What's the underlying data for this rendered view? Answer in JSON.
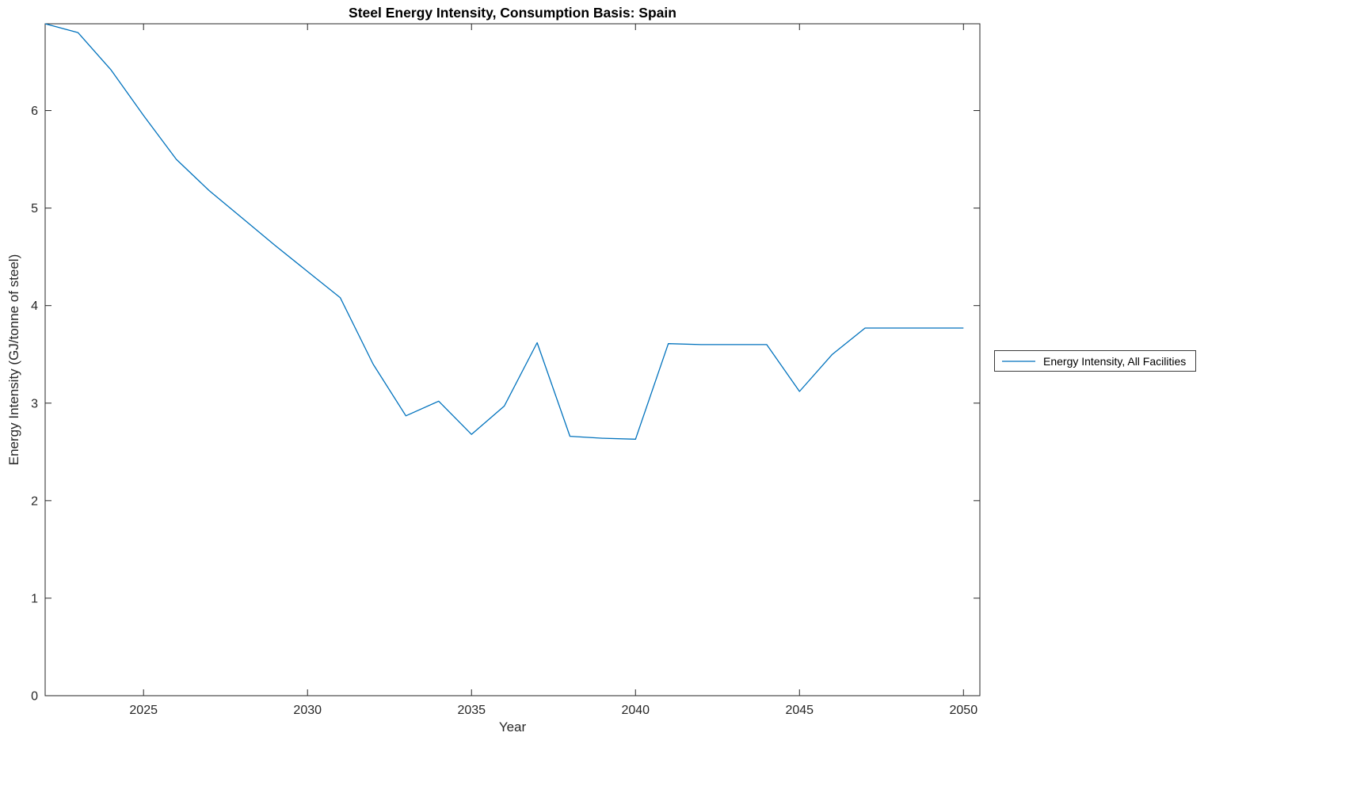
{
  "chart_data": {
    "type": "line",
    "title": "Steel Energy Intensity, Consumption Basis: Spain",
    "xlabel": "Year",
    "ylabel": "Energy Intensity (GJ/tonne of steel)",
    "x": [
      2022,
      2023,
      2024,
      2025,
      2026,
      2027,
      2028,
      2029,
      2030,
      2031,
      2032,
      2033,
      2034,
      2035,
      2036,
      2037,
      2038,
      2039,
      2040,
      2041,
      2042,
      2043,
      2044,
      2045,
      2046,
      2047,
      2048,
      2049,
      2050
    ],
    "series": [
      {
        "name": "Energy Intensity, All Facilities",
        "color": "#0072BD",
        "values": [
          6.89,
          6.8,
          6.42,
          5.95,
          5.5,
          5.18,
          4.9,
          4.62,
          4.35,
          4.08,
          3.4,
          2.87,
          3.02,
          2.68,
          2.97,
          3.62,
          2.66,
          2.64,
          2.63,
          3.61,
          3.6,
          3.6,
          3.6,
          3.12,
          3.5,
          3.77,
          3.77,
          3.77,
          3.77
        ]
      }
    ],
    "xlim": [
      2022,
      2050.5
    ],
    "ylim": [
      0,
      6.89
    ],
    "xticks": [
      2025,
      2030,
      2035,
      2040,
      2045,
      2050
    ],
    "yticks": [
      0,
      1,
      2,
      3,
      4,
      5,
      6
    ],
    "grid": false,
    "legend_position": "outside-right"
  },
  "colors": {
    "line": "#0072BD",
    "axis": "#262626",
    "background": "#ffffff"
  }
}
